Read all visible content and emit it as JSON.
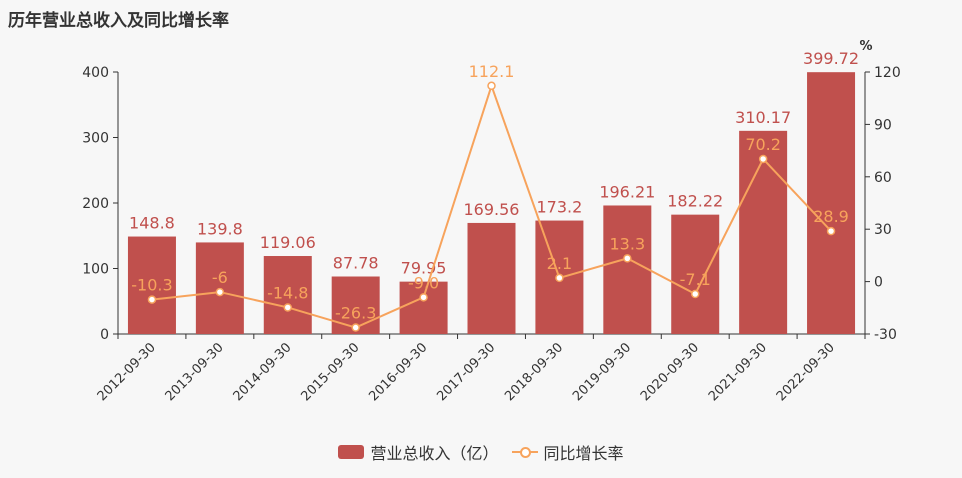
{
  "colors": {
    "bar": "#c0504d",
    "line": "#f7a35c",
    "axis": "#333333",
    "bar_label": "#c0504d",
    "line_label": "#f7a35c",
    "background": "#f7f7f7"
  },
  "chart_data": {
    "type": "bar",
    "title": "历年营业总收入及同比增长率",
    "categories": [
      "2012-09-30",
      "2013-09-30",
      "2014-09-30",
      "2015-09-30",
      "2016-09-30",
      "2017-09-30",
      "2018-09-30",
      "2019-09-30",
      "2020-09-30",
      "2021-09-30",
      "2022-09-30"
    ],
    "series": [
      {
        "name": "营业总收入（亿）",
        "type": "bar",
        "axis": "left",
        "values": [
          148.8,
          139.8,
          119.06,
          87.78,
          79.95,
          169.56,
          173.2,
          196.21,
          182.22,
          310.17,
          399.72
        ],
        "labels": [
          "148.8",
          "139.8",
          "119.06",
          "87.78",
          "79.95",
          "169.56",
          "173.2",
          "196.21",
          "182.22",
          "310.17",
          "399.72"
        ]
      },
      {
        "name": "同比增长率",
        "type": "line",
        "axis": "right",
        "values": [
          -10.3,
          -6,
          -14.8,
          -26.3,
          -9,
          112.1,
          2.1,
          13.3,
          -7.1,
          70.2,
          28.9
        ],
        "labels": [
          "-10.3",
          "-6",
          "-14.8",
          "-26.3",
          "-9.0",
          "112.1",
          "2.1",
          "13.3",
          "-7.1",
          "70.2",
          "28.9"
        ]
      }
    ],
    "y_left": {
      "min": 0,
      "max": 400,
      "ticks": [
        "0",
        "100",
        "200",
        "300",
        "400"
      ]
    },
    "y_right": {
      "min": -30,
      "max": 120,
      "ticks": [
        "-30",
        "0",
        "30",
        "60",
        "90",
        "120"
      ],
      "unit": "%"
    },
    "grid": false,
    "legend": "bottom-center"
  }
}
